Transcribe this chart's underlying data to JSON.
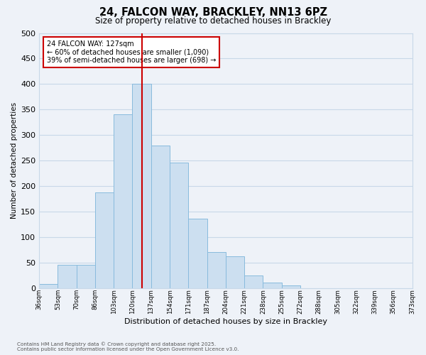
{
  "title": "24, FALCON WAY, BRACKLEY, NN13 6PZ",
  "subtitle": "Size of property relative to detached houses in Brackley",
  "xlabel": "Distribution of detached houses by size in Brackley",
  "ylabel": "Number of detached properties",
  "bar_color": "#ccdff0",
  "bar_edge_color": "#88bbdd",
  "grid_color": "#c8d8e8",
  "background_color": "#eef2f8",
  "bin_labels": [
    "36sqm",
    "53sqm",
    "70sqm",
    "86sqm",
    "103sqm",
    "120sqm",
    "137sqm",
    "154sqm",
    "171sqm",
    "187sqm",
    "204sqm",
    "221sqm",
    "238sqm",
    "255sqm",
    "272sqm",
    "288sqm",
    "305sqm",
    "322sqm",
    "339sqm",
    "356sqm",
    "373sqm"
  ],
  "bar_heights": [
    8,
    46,
    46,
    187,
    340,
    400,
    280,
    246,
    136,
    70,
    62,
    25,
    10,
    5,
    0,
    0,
    0,
    0,
    0,
    0
  ],
  "vline_pos": 5.5,
  "vline_color": "#cc0000",
  "annotation_title": "24 FALCON WAY: 127sqm",
  "annotation_line1": "← 60% of detached houses are smaller (1,090)",
  "annotation_line2": "39% of semi-detached houses are larger (698) →",
  "annotation_box_color": "#ffffff",
  "annotation_box_edge_color": "#cc0000",
  "ylim": [
    0,
    500
  ],
  "yticks": [
    0,
    50,
    100,
    150,
    200,
    250,
    300,
    350,
    400,
    450,
    500
  ],
  "footnote1": "Contains HM Land Registry data © Crown copyright and database right 2025.",
  "footnote2": "Contains public sector information licensed under the Open Government Licence v3.0."
}
